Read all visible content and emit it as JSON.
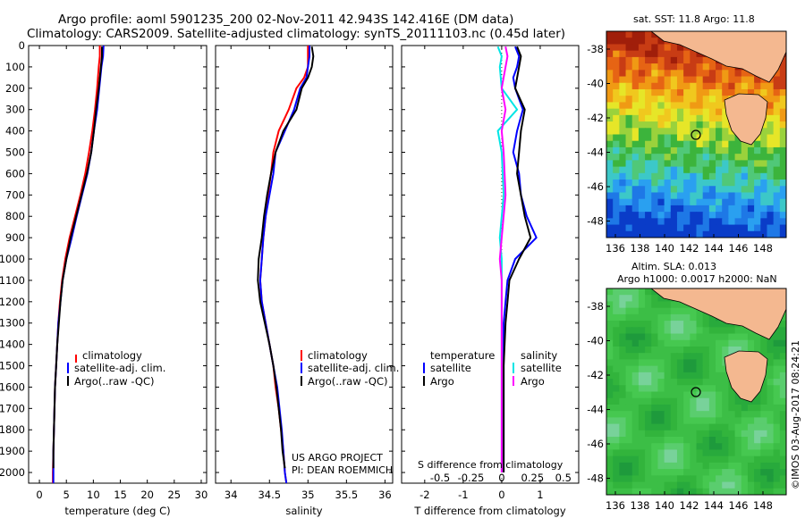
{
  "figure": {
    "title_line1": "Argo profile: aoml 5901235_200 02-Nov-2011 42.943S 142.416E (DM data)",
    "title_line2": "Climatology: CARS2009. Satellite-adjusted climatology: synTS_20111103.nc (0.45d later)",
    "credit": "US ARGO PROJECT",
    "pi": "PI: DEAN ROEMMICH",
    "stamp": "©IMOS 03-Aug-2017 08:24:21",
    "colors": {
      "climatology": "#ff0000",
      "satellite": "#0000ff",
      "argo": "#000000",
      "sat_s": "#00e5e5",
      "argo_s": "#ff00ff",
      "land": "#f4b890"
    }
  },
  "maps": {
    "sst_title": "sat. SST: 11.8 Argo: 11.8",
    "sla_title1": "Altim. SLA: 0.013",
    "sla_title2": "Argo h1000: 0.0017 h2000: NaN",
    "xticks": [
      "136",
      "138",
      "140",
      "142",
      "144",
      "146",
      "148"
    ],
    "yticks": [
      "-38",
      "-40",
      "-42",
      "-44",
      "-46",
      "-48"
    ],
    "marker": "Argo position"
  },
  "chart_data": [
    {
      "type": "line",
      "panel": "temperature",
      "xlabel": "temperature (deg C)",
      "ylabel": "",
      "xlim": [
        -2,
        31
      ],
      "ylim": [
        2050,
        0
      ],
      "xticks": [
        0,
        5,
        10,
        15,
        20,
        25,
        30
      ],
      "yticks": [
        0,
        100,
        200,
        300,
        400,
        500,
        600,
        700,
        800,
        900,
        1000,
        1100,
        1200,
        1300,
        1400,
        1500,
        1600,
        1700,
        1800,
        1900,
        2000
      ],
      "legend": [
        "climatology",
        "satellite-adj. clim.",
        "Argo(..raw -QC)"
      ],
      "series": [
        {
          "name": "climatology",
          "color": "#ff0000",
          "points": [
            [
              11.2,
              0
            ],
            [
              11.2,
              50
            ],
            [
              11.0,
              100
            ],
            [
              10.7,
              200
            ],
            [
              10.3,
              300
            ],
            [
              9.8,
              400
            ],
            [
              9.2,
              500
            ],
            [
              8.5,
              600
            ],
            [
              7.6,
              700
            ],
            [
              6.6,
              800
            ],
            [
              5.6,
              900
            ],
            [
              4.8,
              1000
            ],
            [
              4.2,
              1100
            ],
            [
              3.8,
              1200
            ],
            [
              3.5,
              1300
            ],
            [
              3.3,
              1400
            ],
            [
              3.1,
              1500
            ],
            [
              2.9,
              1600
            ],
            [
              2.8,
              1700
            ],
            [
              2.7,
              1800
            ],
            [
              2.6,
              1900
            ],
            [
              2.5,
              2000
            ],
            [
              2.5,
              2050
            ]
          ]
        },
        {
          "name": "satellite-adj. clim.",
          "color": "#0000ff",
          "points": [
            [
              11.9,
              0
            ],
            [
              11.8,
              50
            ],
            [
              11.5,
              100
            ],
            [
              11.1,
              200
            ],
            [
              10.7,
              300
            ],
            [
              10.1,
              400
            ],
            [
              9.6,
              500
            ],
            [
              8.9,
              600
            ],
            [
              7.9,
              700
            ],
            [
              6.9,
              800
            ],
            [
              6.0,
              900
            ],
            [
              5.0,
              1000
            ],
            [
              4.3,
              1100
            ],
            [
              3.9,
              1200
            ],
            [
              3.5,
              1300
            ],
            [
              3.3,
              1400
            ],
            [
              3.1,
              1500
            ],
            [
              2.9,
              1600
            ],
            [
              2.8,
              1700
            ],
            [
              2.7,
              1800
            ],
            [
              2.6,
              1900
            ],
            [
              2.6,
              2000
            ],
            [
              2.6,
              2050
            ]
          ]
        },
        {
          "name": "Argo(..raw -QC)",
          "color": "#000000",
          "points": [
            [
              11.6,
              5
            ],
            [
              11.6,
              50
            ],
            [
              11.4,
              100
            ],
            [
              11.0,
              200
            ],
            [
              10.5,
              300
            ],
            [
              10.1,
              400
            ],
            [
              9.6,
              500
            ],
            [
              8.8,
              600
            ],
            [
              7.8,
              700
            ],
            [
              6.8,
              800
            ],
            [
              5.8,
              900
            ],
            [
              5.0,
              1000
            ],
            [
              4.3,
              1100
            ],
            [
              3.9,
              1200
            ],
            [
              3.6,
              1300
            ],
            [
              3.3,
              1400
            ],
            [
              3.1,
              1500
            ],
            [
              2.9,
              1600
            ],
            [
              2.8,
              1700
            ],
            [
              2.7,
              1800
            ],
            [
              2.6,
              1900
            ],
            [
              2.6,
              1980
            ]
          ]
        }
      ]
    },
    {
      "type": "line",
      "panel": "salinity",
      "xlabel": "salinity",
      "ylabel": "",
      "xlim": [
        33.8,
        36.1
      ],
      "ylim": [
        2050,
        0
      ],
      "xticks": [
        34,
        34.5,
        35,
        35.5,
        36
      ],
      "xticklabels": [
        "34",
        "34.5",
        "35",
        "35.5",
        "36"
      ],
      "legend": [
        "climatology",
        "satellite-adj. clim.",
        "Argo(..raw -QC)"
      ],
      "series": [
        {
          "name": "climatology",
          "color": "#ff0000",
          "points": [
            [
              35.0,
              0
            ],
            [
              35.0,
              50
            ],
            [
              35.0,
              100
            ],
            [
              34.95,
              150
            ],
            [
              34.85,
              200
            ],
            [
              34.75,
              300
            ],
            [
              34.62,
              400
            ],
            [
              34.55,
              500
            ],
            [
              34.52,
              600
            ],
            [
              34.48,
              700
            ],
            [
              34.45,
              800
            ],
            [
              34.42,
              900
            ],
            [
              34.4,
              1000
            ],
            [
              34.38,
              1100
            ],
            [
              34.4,
              1200
            ],
            [
              34.45,
              1300
            ],
            [
              34.5,
              1400
            ],
            [
              34.55,
              1500
            ],
            [
              34.58,
              1600
            ],
            [
              34.62,
              1700
            ],
            [
              34.65,
              1800
            ],
            [
              34.68,
              1900
            ],
            [
              34.7,
              2000
            ],
            [
              34.72,
              2050
            ]
          ]
        },
        {
          "name": "satellite-adj. clim.",
          "color": "#0000ff",
          "points": [
            [
              35.02,
              0
            ],
            [
              35.02,
              50
            ],
            [
              35.0,
              100
            ],
            [
              34.98,
              150
            ],
            [
              34.9,
              200
            ],
            [
              34.82,
              300
            ],
            [
              34.7,
              400
            ],
            [
              34.58,
              500
            ],
            [
              34.55,
              600
            ],
            [
              34.5,
              700
            ],
            [
              34.45,
              800
            ],
            [
              34.42,
              900
            ],
            [
              34.4,
              1000
            ],
            [
              34.38,
              1100
            ],
            [
              34.4,
              1200
            ],
            [
              34.45,
              1300
            ],
            [
              34.5,
              1400
            ],
            [
              34.55,
              1500
            ],
            [
              34.6,
              1600
            ],
            [
              34.63,
              1700
            ],
            [
              34.66,
              1800
            ],
            [
              34.68,
              1900
            ],
            [
              34.7,
              2000
            ],
            [
              34.72,
              2050
            ]
          ]
        },
        {
          "name": "Argo(..raw -QC)",
          "color": "#000000",
          "points": [
            [
              35.05,
              5
            ],
            [
              35.07,
              50
            ],
            [
              35.05,
              100
            ],
            [
              35.0,
              150
            ],
            [
              34.92,
              200
            ],
            [
              34.85,
              300
            ],
            [
              34.68,
              400
            ],
            [
              34.58,
              500
            ],
            [
              34.52,
              600
            ],
            [
              34.47,
              700
            ],
            [
              34.43,
              800
            ],
            [
              34.4,
              900
            ],
            [
              34.36,
              1000
            ],
            [
              34.35,
              1100
            ],
            [
              34.38,
              1200
            ],
            [
              34.44,
              1300
            ],
            [
              34.5,
              1400
            ],
            [
              34.55,
              1500
            ],
            [
              34.59,
              1600
            ],
            [
              34.62,
              1700
            ],
            [
              34.65,
              1800
            ],
            [
              34.67,
              1900
            ],
            [
              34.7,
              1980
            ]
          ]
        }
      ]
    },
    {
      "type": "line",
      "panel": "difference",
      "xlabel": "T difference from climatology",
      "xlabel_top": "S difference from climatology",
      "xlim": [
        -2.6,
        2.0
      ],
      "ylim": [
        2050,
        0
      ],
      "xticks": [
        -2,
        -1,
        0,
        1
      ],
      "xticklabels": [
        "-2",
        "-1",
        "0",
        "1"
      ],
      "sticks": [
        "-0.5",
        "-0.25",
        "0",
        "0.25",
        "0.5"
      ],
      "legend_t_title": "temperature",
      "legend_s_title": "salinity",
      "legend_t": [
        "satellite",
        "Argo"
      ],
      "legend_s": [
        "satellite",
        "Argo"
      ],
      "series": [
        {
          "name": "satellite",
          "color": "#0000ff",
          "points": [
            [
              0.35,
              5
            ],
            [
              0.45,
              50
            ],
            [
              0.4,
              100
            ],
            [
              0.3,
              150
            ],
            [
              0.35,
              200
            ],
            [
              0.55,
              300
            ],
            [
              0.4,
              400
            ],
            [
              0.3,
              500
            ],
            [
              0.45,
              600
            ],
            [
              0.5,
              700
            ],
            [
              0.65,
              800
            ],
            [
              0.9,
              900
            ],
            [
              0.35,
              1000
            ],
            [
              0.15,
              1100
            ],
            [
              0.1,
              1200
            ],
            [
              0.05,
              1300
            ],
            [
              0.05,
              1500
            ],
            [
              0.05,
              1700
            ],
            [
              0.05,
              1900
            ],
            [
              0.05,
              2000
            ]
          ]
        },
        {
          "name": "Argo",
          "color": "#000000",
          "points": [
            [
              0.4,
              5
            ],
            [
              0.5,
              50
            ],
            [
              0.45,
              100
            ],
            [
              0.35,
              200
            ],
            [
              0.6,
              300
            ],
            [
              0.5,
              400
            ],
            [
              0.45,
              500
            ],
            [
              0.4,
              600
            ],
            [
              0.5,
              700
            ],
            [
              0.6,
              800
            ],
            [
              0.75,
              900
            ],
            [
              0.45,
              1000
            ],
            [
              0.2,
              1100
            ],
            [
              0.15,
              1200
            ],
            [
              0.1,
              1300
            ],
            [
              0.05,
              1500
            ],
            [
              0.05,
              1700
            ],
            [
              0.05,
              1900
            ],
            [
              0.05,
              2000
            ]
          ]
        },
        {
          "name": "satellite",
          "color": "#00e5e5",
          "points": [
            [
              -0.1,
              5
            ],
            [
              0.0,
              50
            ],
            [
              -0.05,
              100
            ],
            [
              0.0,
              200
            ],
            [
              0.4,
              300
            ],
            [
              -0.1,
              400
            ],
            [
              0.0,
              500
            ],
            [
              0.05,
              700
            ],
            [
              -0.05,
              900
            ],
            [
              0.0,
              1000
            ],
            [
              0.0,
              1300
            ],
            [
              0.0,
              1600
            ],
            [
              0.0,
              2000
            ]
          ]
        },
        {
          "name": "Argo",
          "color": "#ff00ff",
          "points": [
            [
              0.1,
              5
            ],
            [
              0.15,
              50
            ],
            [
              0.1,
              100
            ],
            [
              0.0,
              200
            ],
            [
              0.1,
              300
            ],
            [
              0.0,
              400
            ],
            [
              0.05,
              500
            ],
            [
              0.1,
              700
            ],
            [
              0.0,
              900
            ],
            [
              -0.05,
              1000
            ],
            [
              0.0,
              1100
            ],
            [
              0.0,
              1300
            ],
            [
              0.0,
              1600
            ],
            [
              0.0,
              2000
            ]
          ]
        }
      ]
    }
  ]
}
